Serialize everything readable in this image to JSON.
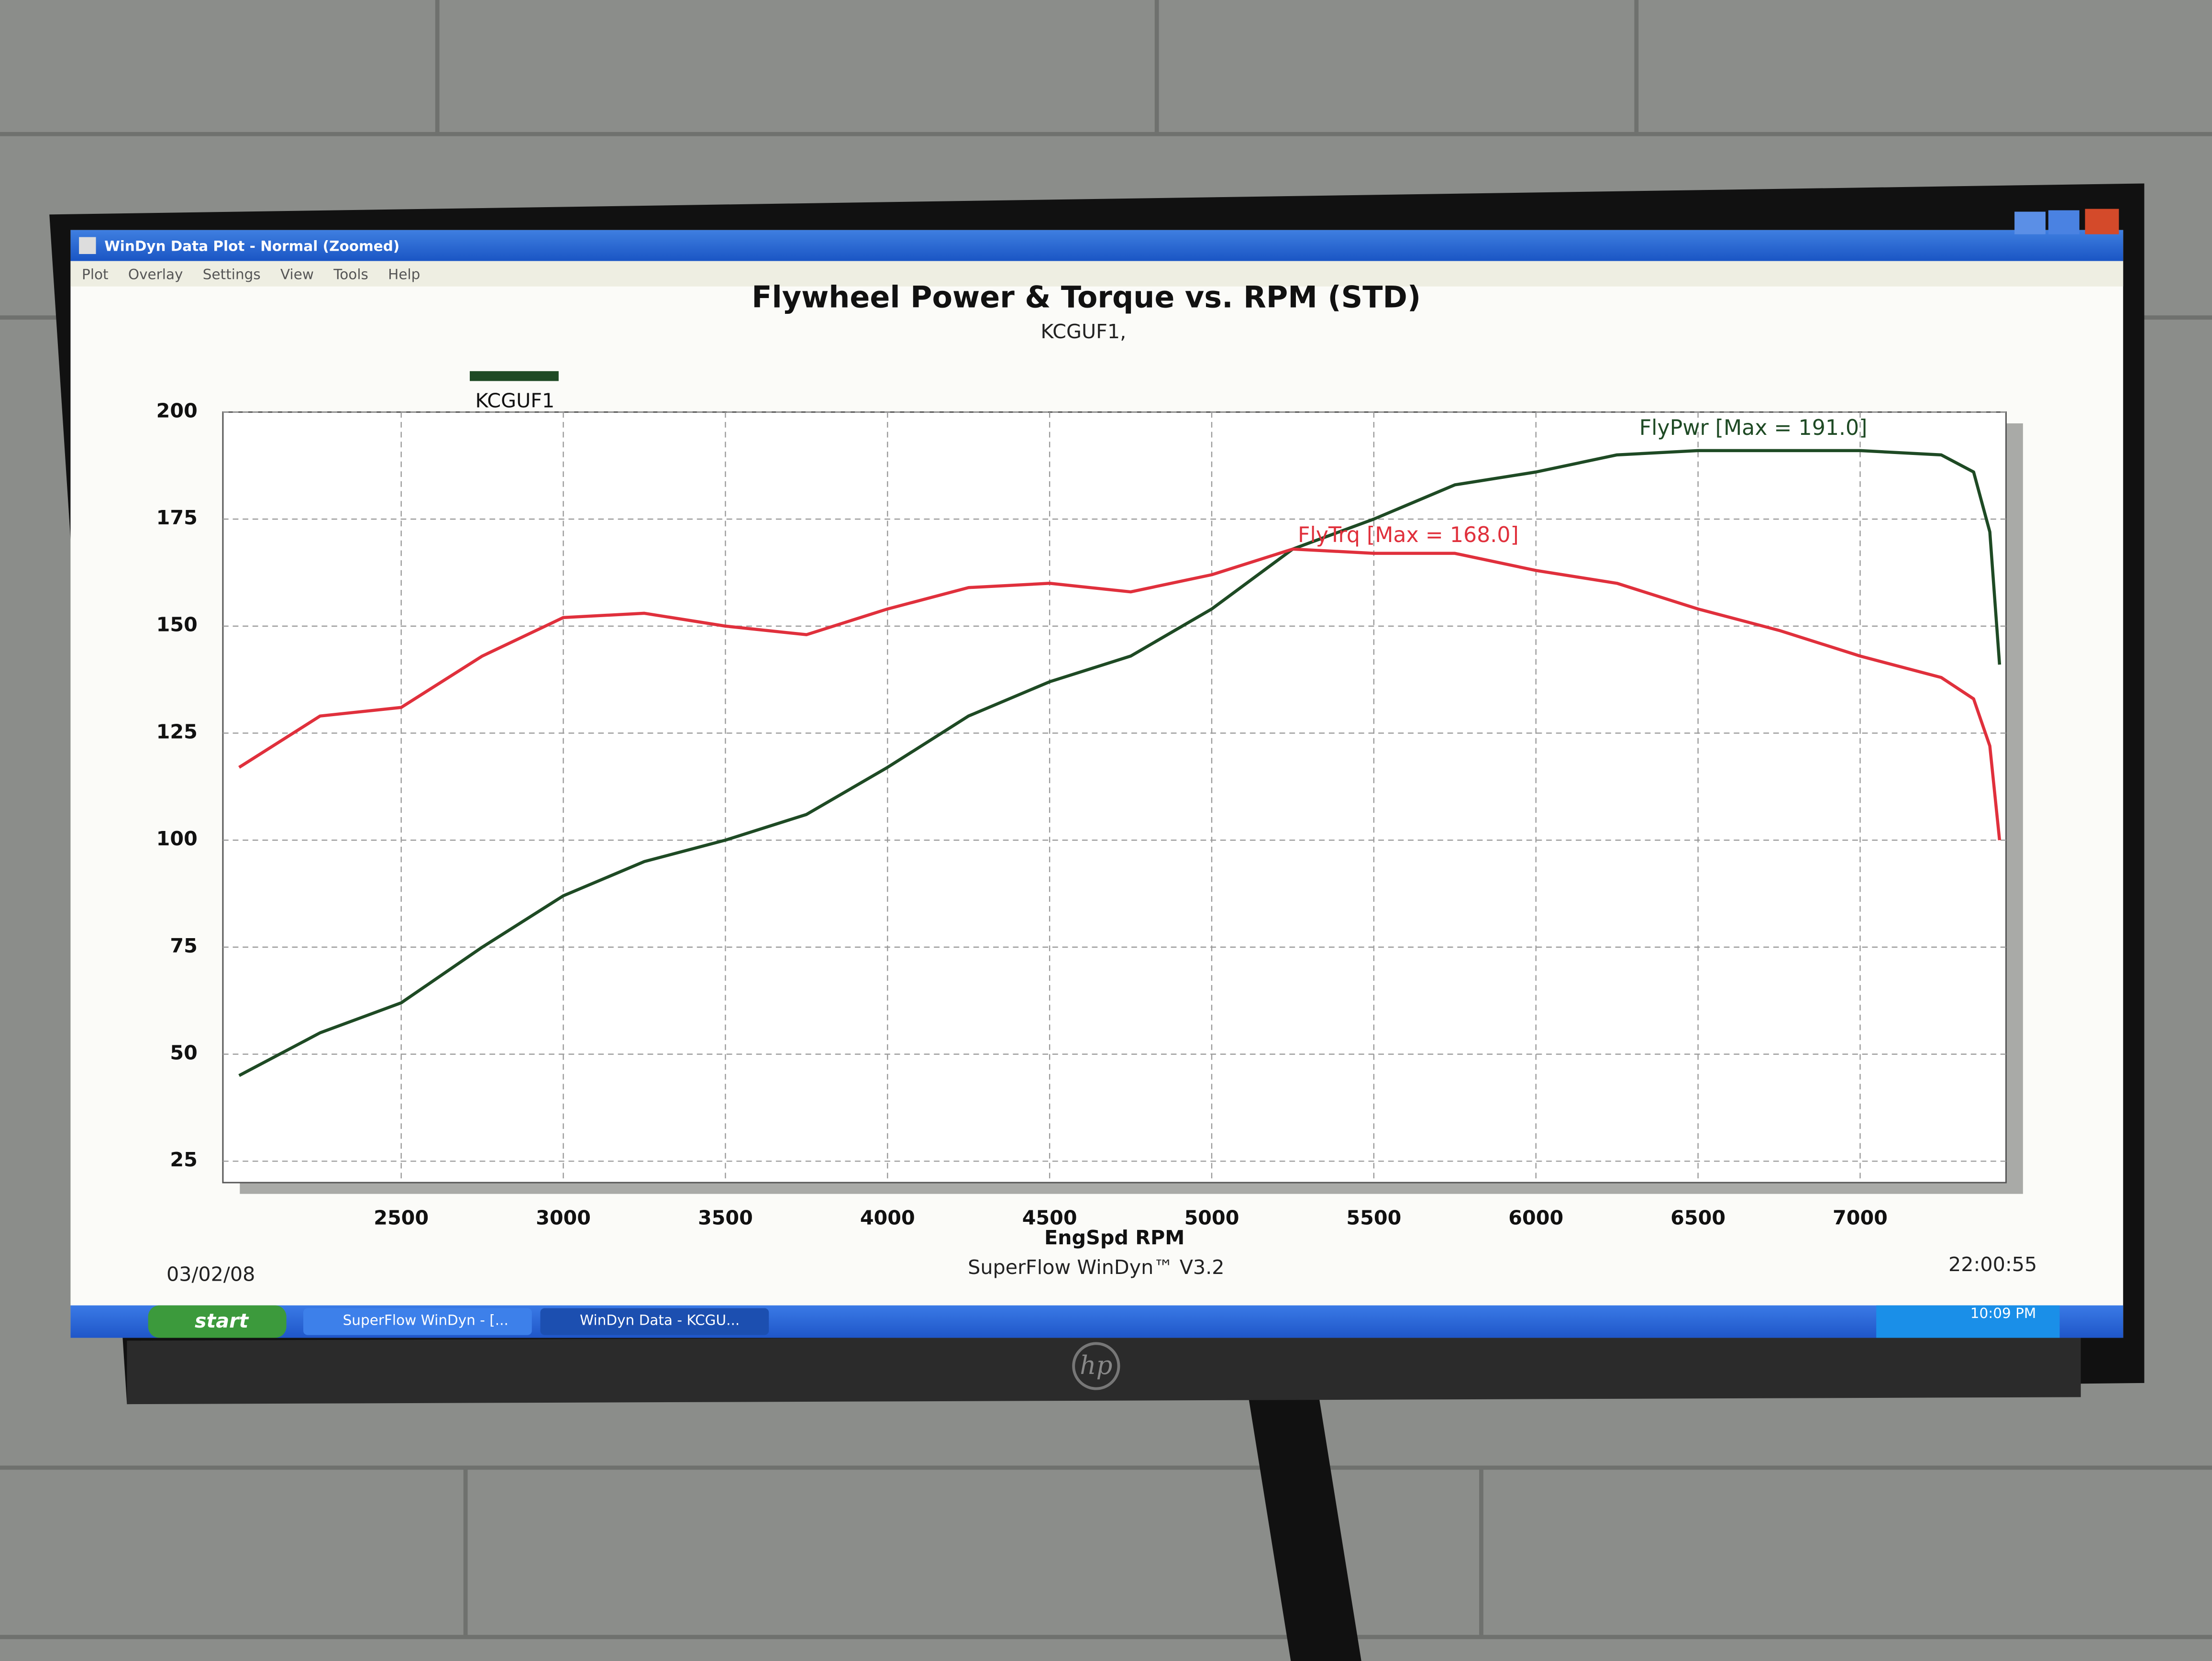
{
  "window": {
    "title": "WinDyn Data Plot - Normal   (Zoomed)",
    "menu": [
      "Plot",
      "Overlay",
      "Settings",
      "View",
      "Tools",
      "Help"
    ],
    "taskbar": {
      "start": "start",
      "tasks": [
        "SuperFlow WinDyn - [...",
        "WinDyn Data - KCGU..."
      ],
      "clock": "10:09 PM"
    }
  },
  "monitor": {
    "brand": "hp"
  },
  "chart_data": {
    "type": "line",
    "title": "Flywheel Power & Torque vs. RPM (STD)",
    "subtitle": "KCGUF1,",
    "x_label": "EngSpd RPM",
    "run_legend": {
      "name": "KCGUF1",
      "color": "#1e4a24"
    },
    "footer": {
      "date": "03/02/08",
      "credit": "SuperFlow WinDyn™ V3.2",
      "time": "22:00:55"
    },
    "x": [
      2000,
      2250,
      2500,
      2750,
      3000,
      3250,
      3500,
      3750,
      4000,
      4250,
      4500,
      4750,
      5000,
      5250,
      5500,
      5750,
      6000,
      6250,
      6500,
      6750,
      7000,
      7250,
      7350,
      7400,
      7430
    ],
    "series": [
      {
        "name": "FlyPwr [Max = 191.0]",
        "color": "#1e4a24",
        "values": [
          45,
          55,
          62,
          75,
          87,
          95,
          100,
          106,
          117,
          129,
          137,
          143,
          154,
          168,
          175,
          183,
          186,
          190,
          191,
          191,
          191,
          190,
          186,
          172,
          141
        ]
      },
      {
        "name": "FlyTrq [Max = 168.0]",
        "color": "#e0303c",
        "values": [
          117,
          129,
          131,
          143,
          152,
          153,
          150,
          148,
          154,
          159,
          160,
          158,
          162,
          168,
          167,
          167,
          163,
          160,
          154,
          149,
          143,
          138,
          133,
          122,
          100
        ]
      }
    ],
    "xlim": [
      1950,
      7450
    ],
    "ylim": [
      20,
      200
    ],
    "xticks": [
      2500,
      3000,
      3500,
      4000,
      4500,
      5000,
      5500,
      6000,
      6500,
      7000
    ],
    "yticks": [
      25,
      50,
      75,
      100,
      125,
      150,
      175,
      200
    ],
    "grid": true
  }
}
